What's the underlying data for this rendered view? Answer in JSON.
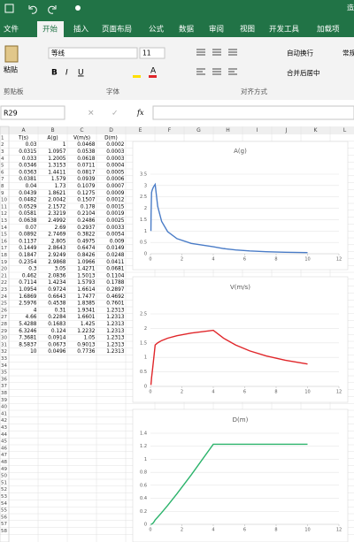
{
  "window": {
    "title_fragment": "造"
  },
  "ribbon": {
    "tabs": [
      "文件",
      "开始",
      "插入",
      "页面布局",
      "公式",
      "数据",
      "审阅",
      "视图",
      "开发工具",
      "加载项"
    ],
    "paste": "粘贴",
    "font_name": "等线",
    "font_size": "11",
    "wrap_text": "自动换行",
    "merge_center": "合并后居中",
    "number_format": "常规",
    "groups": [
      "剪贴板",
      "字体",
      "对齐方式"
    ]
  },
  "formula_bar": {
    "name_box": "R29",
    "fx": "fx"
  },
  "sheet": {
    "columns": [
      "A",
      "B",
      "C",
      "D",
      "E",
      "F",
      "G",
      "H",
      "I",
      "J",
      "K",
      "L"
    ],
    "row_numbers": [
      1,
      2,
      3,
      4,
      5,
      6,
      7,
      8,
      9,
      10,
      11,
      12,
      13,
      14,
      15,
      16,
      17,
      18,
      19,
      20,
      21,
      22,
      23,
      24,
      25,
      26,
      27,
      28,
      29,
      30,
      31,
      32,
      33,
      34,
      35,
      36,
      37,
      38,
      39,
      40,
      41,
      42,
      43,
      44,
      45,
      46,
      47,
      48,
      49,
      50,
      51,
      52,
      53,
      54,
      55,
      56,
      57,
      58
    ],
    "rows": [
      [
        "T(s)",
        "A(g)",
        "V(m/s)",
        "D(m)"
      ],
      [
        0.03,
        1,
        0.0468,
        0.0002
      ],
      [
        0.0315,
        1.0957,
        0.0538,
        0.0003
      ],
      [
        0.033,
        1.2005,
        0.0618,
        0.0003
      ],
      [
        0.0346,
        1.3153,
        0.0711,
        0.0004
      ],
      [
        0.0363,
        1.4411,
        0.0817,
        0.0005
      ],
      [
        0.0381,
        1.579,
        0.0939,
        0.0006
      ],
      [
        0.04,
        1.73,
        0.1079,
        0.0007
      ],
      [
        0.0439,
        1.8621,
        0.1275,
        0.0009
      ],
      [
        0.0482,
        2.0042,
        0.1507,
        0.0012
      ],
      [
        0.0529,
        2.1572,
        0.178,
        0.0015
      ],
      [
        0.0581,
        2.3219,
        0.2104,
        0.0019
      ],
      [
        0.0638,
        2.4992,
        0.2486,
        0.0025
      ],
      [
        0.07,
        2.69,
        0.2937,
        0.0033
      ],
      [
        0.0892,
        2.7469,
        0.3822,
        0.0054
      ],
      [
        0.1137,
        2.805,
        0.4975,
        0.009
      ],
      [
        0.1449,
        2.8643,
        0.6474,
        0.0149
      ],
      [
        0.1847,
        2.9249,
        0.8426,
        0.0248
      ],
      [
        0.2354,
        2.9868,
        1.0966,
        0.0411
      ],
      [
        0.3,
        3.05,
        1.4271,
        0.0681
      ],
      [
        0.462,
        2.0836,
        1.5013,
        0.1104
      ],
      [
        0.7114,
        1.4234,
        1.5793,
        0.1788
      ],
      [
        1.0954,
        0.9724,
        1.6614,
        0.2897
      ],
      [
        1.6869,
        0.6643,
        1.7477,
        0.4692
      ],
      [
        2.5976,
        0.4538,
        1.8385,
        0.7601
      ],
      [
        4,
        0.31,
        1.9341,
        1.2313
      ],
      [
        4.66,
        0.2284,
        1.6601,
        1.2313
      ],
      [
        5.4288,
        0.1683,
        1.425,
        1.2313
      ],
      [
        6.3246,
        0.124,
        1.2232,
        1.2313
      ],
      [
        7.3681,
        0.0914,
        1.05,
        1.2313
      ],
      [
        8.5837,
        0.0673,
        0.9013,
        1.2313
      ],
      [
        10,
        0.0496,
        0.7736,
        1.2313
      ]
    ]
  },
  "chart_data": [
    {
      "type": "line",
      "title": "A(g)",
      "color": "#4a7cc7",
      "x": [
        0.03,
        0.0315,
        0.033,
        0.0346,
        0.0363,
        0.0381,
        0.04,
        0.0439,
        0.0482,
        0.0529,
        0.0581,
        0.0638,
        0.07,
        0.0892,
        0.1137,
        0.1449,
        0.1847,
        0.2354,
        0.3,
        0.462,
        0.7114,
        1.0954,
        1.6869,
        2.5976,
        4,
        4.66,
        5.4288,
        6.3246,
        7.3681,
        8.5837,
        10
      ],
      "values": [
        1,
        1.0957,
        1.2005,
        1.3153,
        1.4411,
        1.579,
        1.73,
        1.8621,
        2.0042,
        2.1572,
        2.3219,
        2.4992,
        2.69,
        2.7469,
        2.805,
        2.8643,
        2.9249,
        2.9868,
        3.05,
        2.0836,
        1.4234,
        0.9724,
        0.6643,
        0.4538,
        0.31,
        0.2284,
        0.1683,
        0.124,
        0.0914,
        0.0673,
        0.0496
      ],
      "xlim": [
        0,
        12
      ],
      "xticks": [
        0,
        2,
        4,
        6,
        8,
        10,
        12
      ],
      "ylim": [
        0,
        3.5
      ],
      "yticks": [
        0,
        0.5,
        1,
        1.5,
        2,
        2.5,
        3,
        3.5
      ]
    },
    {
      "type": "line",
      "title": "V(m/s)",
      "color": "#e0262a",
      "x": [
        0.03,
        0.0315,
        0.033,
        0.0346,
        0.0363,
        0.0381,
        0.04,
        0.0439,
        0.0482,
        0.0529,
        0.0581,
        0.0638,
        0.07,
        0.0892,
        0.1137,
        0.1449,
        0.1847,
        0.2354,
        0.3,
        0.462,
        0.7114,
        1.0954,
        1.6869,
        2.5976,
        4,
        4.66,
        5.4288,
        6.3246,
        7.3681,
        8.5837,
        10
      ],
      "values": [
        0.0468,
        0.0538,
        0.0618,
        0.0711,
        0.0817,
        0.0939,
        0.1079,
        0.1275,
        0.1507,
        0.178,
        0.2104,
        0.2486,
        0.2937,
        0.3822,
        0.4975,
        0.6474,
        0.8426,
        1.0966,
        1.4271,
        1.5013,
        1.5793,
        1.6614,
        1.7477,
        1.8385,
        1.9341,
        1.6601,
        1.425,
        1.2232,
        1.05,
        0.9013,
        0.7736
      ],
      "xlim": [
        0,
        12
      ],
      "xticks": [
        0,
        2,
        4,
        6,
        8,
        10,
        12
      ],
      "ylim": [
        0,
        2.5
      ],
      "yticks": [
        0,
        0.5,
        1,
        1.5,
        2,
        2.5
      ]
    },
    {
      "type": "line",
      "title": "D(m)",
      "color": "#2bb36b",
      "x": [
        0.03,
        0.0315,
        0.033,
        0.0346,
        0.0363,
        0.0381,
        0.04,
        0.0439,
        0.0482,
        0.0529,
        0.0581,
        0.0638,
        0.07,
        0.0892,
        0.1137,
        0.1449,
        0.1847,
        0.2354,
        0.3,
        0.462,
        0.7114,
        1.0954,
        1.6869,
        2.5976,
        4,
        4.66,
        5.4288,
        6.3246,
        7.3681,
        8.5837,
        10
      ],
      "values": [
        0.0002,
        0.0003,
        0.0003,
        0.0004,
        0.0005,
        0.0006,
        0.0007,
        0.0009,
        0.0012,
        0.0015,
        0.0019,
        0.0025,
        0.0033,
        0.0054,
        0.009,
        0.0149,
        0.0248,
        0.0411,
        0.0681,
        0.1104,
        0.1788,
        0.2897,
        0.4692,
        0.7601,
        1.2313,
        1.2313,
        1.2313,
        1.2313,
        1.2313,
        1.2313,
        1.2313
      ],
      "xlim": [
        0,
        12
      ],
      "xticks": [
        0,
        2,
        4,
        6,
        8,
        10,
        12
      ],
      "ylim": [
        0,
        1.4
      ],
      "yticks": [
        0,
        0.2,
        0.4,
        0.6,
        0.8,
        1,
        1.2,
        1.4
      ]
    }
  ]
}
